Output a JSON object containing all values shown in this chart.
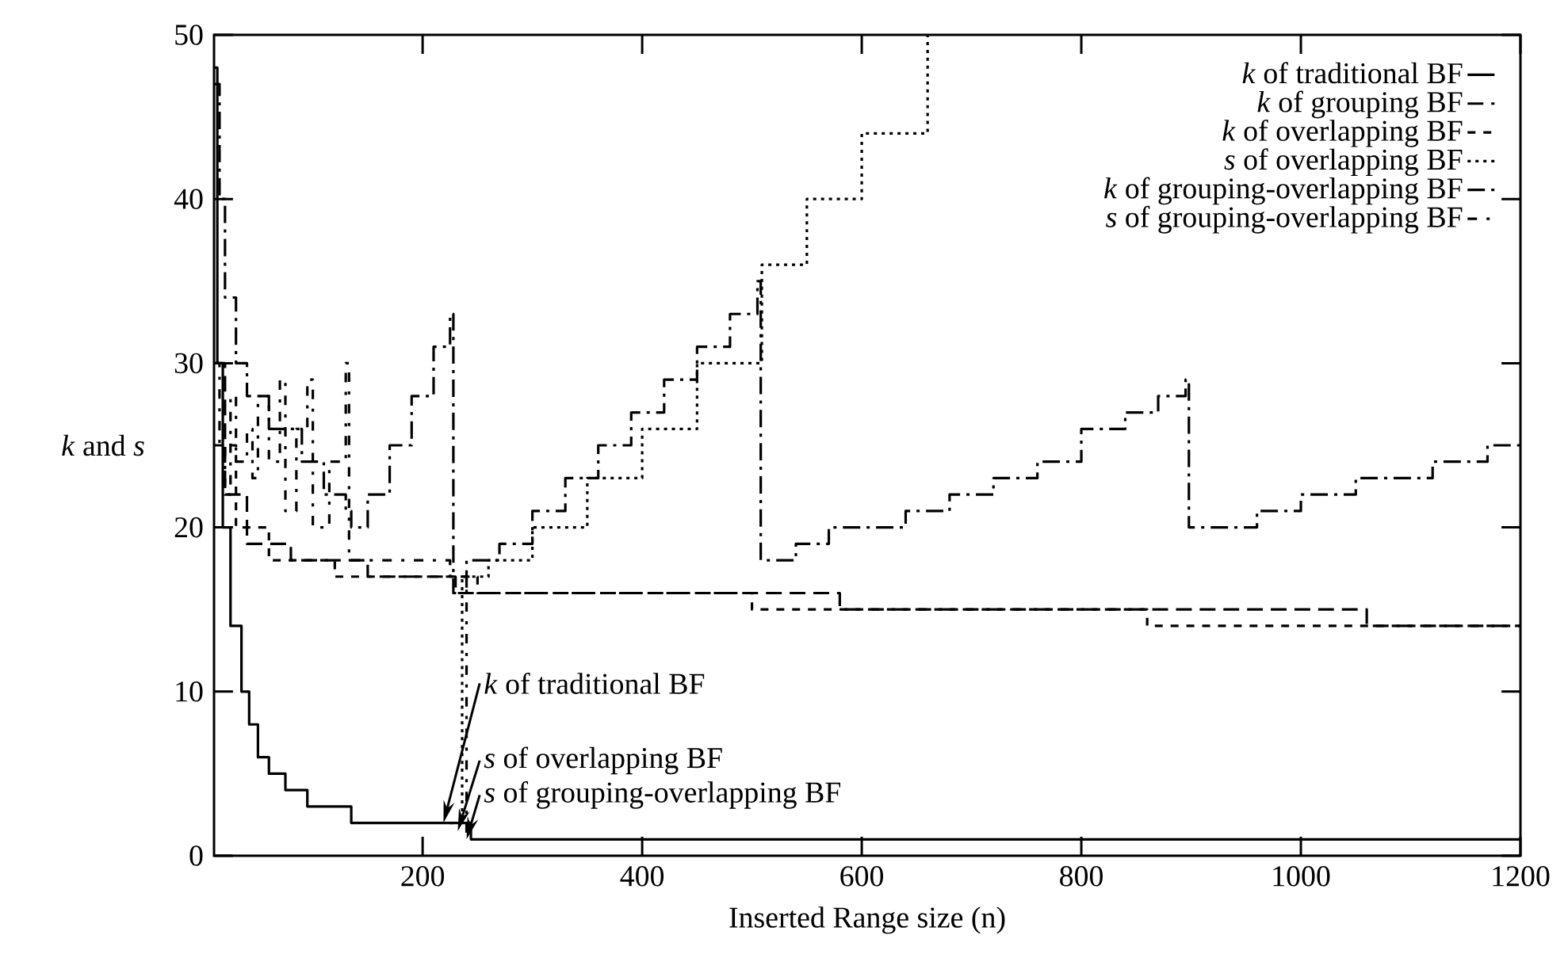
{
  "chart_data": {
    "type": "step",
    "xlabel": "Inserted Range size (n)",
    "ylabel": "*k* and *s*",
    "xlim": [
      10,
      1200
    ],
    "ylim": [
      0,
      50
    ],
    "xticks": [
      200,
      400,
      600,
      800,
      1000,
      1200
    ],
    "yticks": [
      0,
      10,
      20,
      30,
      40,
      50
    ],
    "grid": false,
    "legend": "top right",
    "series": [
      {
        "name": "*k* of traditional BF",
        "color": "#000000",
        "line_style": "solid",
        "x": [
          10,
          13,
          18,
          25,
          35,
          42,
          50,
          60,
          75,
          95,
          135,
          244,
          1200
        ],
        "values": [
          48,
          30,
          20,
          14,
          10,
          8,
          6,
          5,
          4,
          3,
          2,
          1,
          1
        ]
      },
      {
        "name": "*k* of grouping BF",
        "color": "#000000",
        "line_style": "dashed",
        "x": [
          10,
          20,
          40,
          80,
          150,
          230,
          330,
          580,
          1060,
          1200
        ],
        "values": [
          30,
          22,
          19,
          18,
          17,
          16,
          16,
          15,
          14,
          14
        ]
      },
      {
        "name": "*k* of overlapping BF",
        "color": "#000000",
        "line_style": "densely dashed",
        "x": [
          10,
          30,
          60,
          120,
          250,
          400,
          500,
          860,
          1000,
          1200
        ],
        "values": [
          25,
          20,
          18,
          17,
          16,
          16,
          15,
          14,
          14,
          14
        ]
      },
      {
        "name": "*s* of overlapping BF",
        "color": "#000000",
        "line_style": "dotted",
        "x": [
          225,
          236,
          260,
          300,
          350,
          400,
          450,
          509,
          550,
          600,
          660
        ],
        "values": [
          2,
          17,
          18,
          20,
          23,
          26,
          30,
          36,
          40,
          44,
          50
        ]
      },
      {
        "name": "*k* of grouping-overlapping BF",
        "color": "#000000",
        "line_style": "dash dot",
        "x": [
          10,
          15,
          20,
          30,
          40,
          60,
          90,
          110,
          130,
          135,
          150,
          170,
          190,
          210,
          225,
          228,
          240,
          270,
          300,
          330,
          360,
          390,
          420,
          450,
          480,
          505,
          508,
          540,
          570,
          600,
          640,
          680,
          720,
          760,
          800,
          840,
          870,
          895,
          898,
          950,
          960,
          1000,
          1050,
          1100,
          1120,
          1160,
          1170,
          1200
        ],
        "values": [
          47,
          40,
          34,
          30,
          28,
          26,
          24,
          22,
          21,
          20,
          22,
          25,
          28,
          31,
          33,
          16,
          18,
          19,
          21,
          23,
          25,
          27,
          29,
          31,
          33,
          35,
          18,
          19,
          20,
          20,
          21,
          22,
          23,
          24,
          26,
          27,
          28,
          29,
          20,
          20,
          21,
          22,
          23,
          23,
          24,
          24,
          25,
          25
        ]
      },
      {
        "name": "*s* of grouping-overlapping BF",
        "color": "#000000",
        "line_style": "densely dash dot",
        "x": [
          10,
          15,
          20,
          25,
          30,
          40,
          45,
          50,
          60,
          70,
          75,
          85,
          95,
          100,
          115,
          130,
          133,
          225,
          240
        ],
        "values": [
          30,
          25,
          22,
          28,
          24,
          26,
          23,
          28,
          24,
          29,
          21,
          26,
          29,
          20,
          24,
          30,
          18,
          17,
          1
        ]
      }
    ],
    "annotations": [
      {
        "text": "*k* of traditional BF",
        "x": 219,
        "y": 2
      },
      {
        "text": "*s* of overlapping BF",
        "x": 232,
        "y": 1.5
      },
      {
        "text": "*s* of grouping-overlapping BF",
        "x": 240,
        "y": 1
      }
    ]
  }
}
